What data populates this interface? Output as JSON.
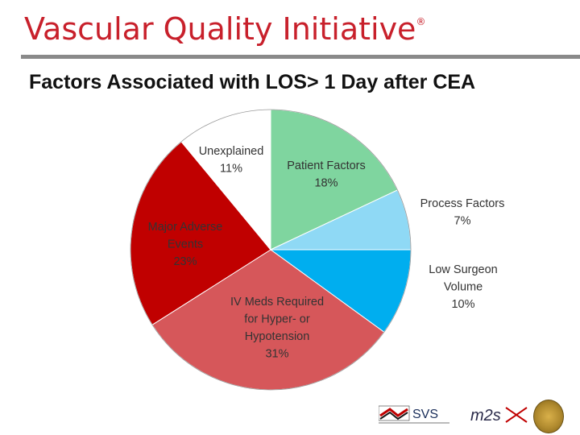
{
  "header": {
    "title": "Vascular Quality Initiative",
    "trademark": "®"
  },
  "slide": {
    "title": "Factors Associated with LOS> 1 Day after CEA"
  },
  "chart_data": {
    "type": "pie",
    "title": "Factors Associated with LOS> 1 Day after CEA",
    "slices": [
      {
        "label_lines": [
          "Patient Factors",
          "18%"
        ],
        "value": 18,
        "color": "#7fd59f"
      },
      {
        "label_lines": [
          "Process Factors",
          "7%"
        ],
        "value": 7,
        "color": "#8fd9f5"
      },
      {
        "label_lines": [
          "Low Surgeon",
          "Volume",
          "10%"
        ],
        "value": 10,
        "color": "#00aeef"
      },
      {
        "label_lines": [
          "IV Meds Required",
          "for Hyper- or",
          "Hypotension",
          "31%"
        ],
        "value": 31,
        "color": "#d6575a"
      },
      {
        "label_lines": [
          "Major Adverse",
          "Events",
          "23%"
        ],
        "value": 23,
        "color": "#c00000"
      },
      {
        "label_lines": [
          "Unexplained",
          "11%"
        ],
        "value": 11,
        "color": "#ffffff"
      }
    ],
    "legend": "none"
  },
  "logos": {
    "svs": "SVS",
    "m2s": "m2s"
  }
}
